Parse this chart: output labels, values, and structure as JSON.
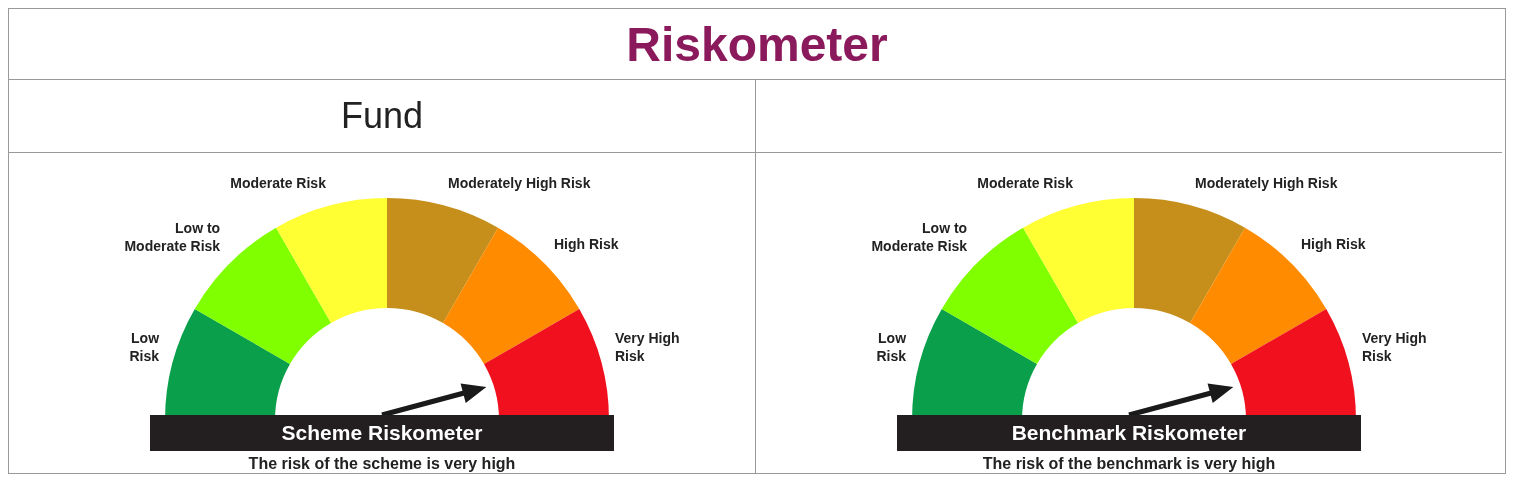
{
  "chart_data": [
    {
      "type": "donut",
      "title": "Riskometer",
      "subtitle": "Fund",
      "categories": [
        "Low Risk",
        "Low to Moderate Risk",
        "Moderate Risk",
        "Moderately High Risk",
        "High Risk",
        "Very High Risk"
      ],
      "values": [
        16.67,
        16.67,
        16.66,
        16.67,
        16.67,
        16.66
      ],
      "colors": [
        "#0a9f4a",
        "#80ff00",
        "#ffff33",
        "#c68e1a",
        "#ff8c00",
        "#f0101e"
      ],
      "needle": "Very High Risk",
      "annotations": [
        "Scheme Riskometer",
        "The risk of the scheme is very high"
      ]
    },
    {
      "type": "donut",
      "categories": [
        "Low Risk",
        "Low to Moderate Risk",
        "Moderate Risk",
        "Moderately High Risk",
        "High Risk",
        "Very High Risk"
      ],
      "values": [
        16.67,
        16.67,
        16.66,
        16.67,
        16.67,
        16.66
      ],
      "colors": [
        "#0a9f4a",
        "#80ff00",
        "#ffff33",
        "#c68e1a",
        "#ff8c00",
        "#f0101e"
      ],
      "needle": "Very High Risk",
      "annotations": [
        "Benchmark Riskometer",
        "The risk of the benchmark is very high"
      ]
    }
  ]
}
